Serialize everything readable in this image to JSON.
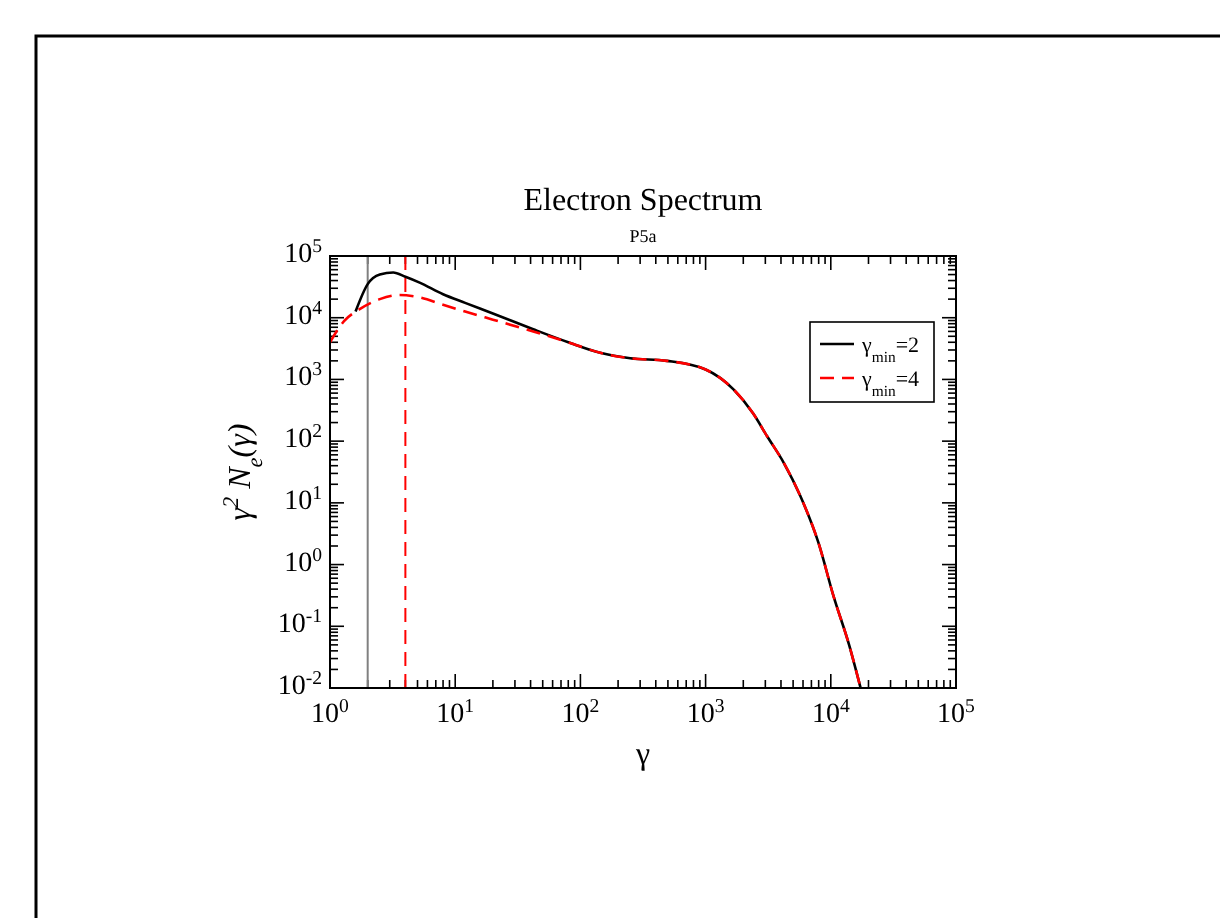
{
  "chart_data": {
    "type": "line",
    "title": "Electron Spectrum",
    "subtitle": "P5a",
    "xlabel": "γ",
    "ylabel": "γ$^{2}$ N$_{e}$(γ)",
    "log": "xy",
    "xlim": [
      1,
      100000
    ],
    "ylim": [
      0.01,
      100000
    ],
    "xticks": [
      {
        "value": 1,
        "label": "10$^{0}$"
      },
      {
        "value": 10,
        "label": "10$^{1}$"
      },
      {
        "value": 100,
        "label": "10$^{2}$"
      },
      {
        "value": 1000,
        "label": "10$^{3}$"
      },
      {
        "value": 10000,
        "label": "10$^{4}$"
      },
      {
        "value": 100000,
        "label": "10$^{5}$"
      }
    ],
    "yticks": [
      {
        "value": 0.01,
        "label": "10$^{-2}$"
      },
      {
        "value": 0.1,
        "label": "10$^{-1}$"
      },
      {
        "value": 1,
        "label": "10$^{0}$"
      },
      {
        "value": 10,
        "label": "10$^{1}$"
      },
      {
        "value": 100,
        "label": "10$^{2}$"
      },
      {
        "value": 1000,
        "label": "10$^{3}$"
      },
      {
        "value": 10000,
        "label": "10$^{4}$"
      },
      {
        "value": 100000,
        "label": "10$^{5}$"
      }
    ],
    "legend": "top right",
    "grid": false,
    "ref_lines": [
      {
        "axis": "x",
        "value": 2,
        "color": "#808080",
        "line_style": "solid"
      },
      {
        "axis": "x",
        "value": 4,
        "color": "#ff0000",
        "line_style": "dashed"
      }
    ],
    "series": [
      {
        "name": "γ$_{min}$=2",
        "color": "#000000",
        "line_style": "solid",
        "x": [
          1.6,
          2,
          2.5,
          3.2,
          4,
          5.2,
          8,
          12,
          20,
          42,
          80,
          144,
          250,
          490,
          1000,
          1670,
          2400,
          3100,
          4200,
          5700,
          8000,
          10500,
          14000,
          17300
        ],
        "values": [
          12600,
          35000,
          50000,
          54000,
          46000,
          37000,
          24000,
          17400,
          11700,
          6500,
          4000,
          2700,
          2200,
          2000,
          1450,
          690,
          280,
          120,
          45,
          13,
          2.2,
          0.31,
          0.05,
          0.01
        ]
      },
      {
        "name": "γ$_{min}$=4",
        "color": "#ff0000",
        "line_style": "dashed",
        "x": [
          1,
          1.3,
          1.7,
          2.5,
          3.6,
          5.2,
          8,
          12,
          20,
          42,
          80,
          144,
          250,
          490,
          1000,
          1670,
          2400,
          3100,
          4200,
          5700,
          8000,
          10500,
          14000,
          17300
        ],
        "values": [
          4000,
          8900,
          13500,
          20000,
          23400,
          21400,
          16200,
          12600,
          9300,
          6000,
          4000,
          2700,
          2200,
          2000,
          1450,
          690,
          280,
          120,
          45,
          13,
          2.2,
          0.31,
          0.05,
          0.01
        ]
      }
    ]
  }
}
